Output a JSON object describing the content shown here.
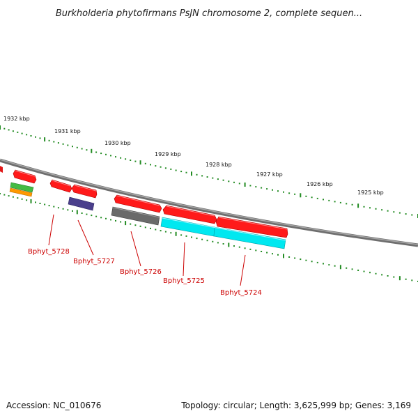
{
  "title": "Burkholderia phytofirmans PsJN chromosome 2, complete sequen...",
  "footer": {
    "accession": "Accession: NC_010676",
    "topology": "Topology: circular; Length: 3,625,999 bp; Genes: 3,169"
  },
  "ruler": {
    "tick_labels": [
      "1932 kbp",
      "1931 kbp",
      "1930 kbp",
      "1929 kbp",
      "1928 kbp",
      "1927 kbp",
      "1926 kbp",
      "1925 kbp"
    ]
  },
  "genes": [
    {
      "label": "Bphyt_5728",
      "color": "#e02020"
    },
    {
      "label": "Bphyt_5727",
      "color": "#e02020"
    },
    {
      "label": "Bphyt_5726",
      "color": "#6a6a6a"
    },
    {
      "label": "Bphyt_5725",
      "color": "#00e5ee"
    },
    {
      "label": "Bphyt_5724",
      "color": "#e02020"
    }
  ],
  "colors": {
    "backbone": "#808080",
    "ruler": "#228b22",
    "forward_strand": "#ff0000",
    "label": "#cc0000",
    "cyan_feature": "#00ffff",
    "gray_feature": "#707070",
    "purple_feature": "#4a3f8c",
    "green_feature": "#44bb44",
    "orange_feature": "#ff9900"
  }
}
